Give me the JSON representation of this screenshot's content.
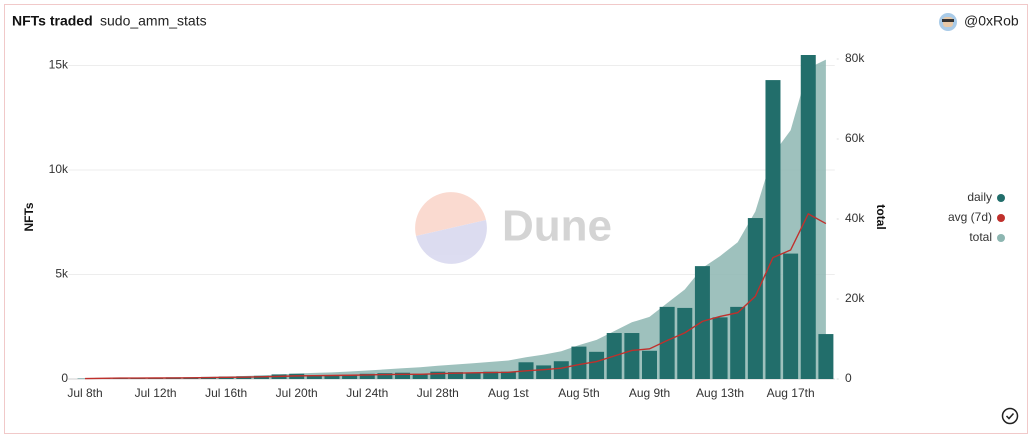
{
  "chart_data": {
    "type": "bar",
    "title": "NFTs traded",
    "subtitle": "sudo_amm_stats",
    "author": "@0xRob",
    "watermark": "Dune",
    "ylabel": "NFTs",
    "y2label": "total",
    "categories": [
      "Jul 8th",
      null,
      null,
      null,
      "Jul 12th",
      null,
      null,
      null,
      "Jul 16th",
      null,
      null,
      null,
      "Jul 20th",
      null,
      null,
      null,
      "Jul 24th",
      null,
      null,
      null,
      "Jul 28th",
      null,
      null,
      null,
      "Aug 1st",
      null,
      null,
      null,
      "Aug 5th",
      null,
      null,
      null,
      "Aug 9th",
      null,
      null,
      null,
      "Aug 13th",
      null,
      null,
      null,
      "Aug 17th",
      null,
      null
    ],
    "series": [
      {
        "name": "daily",
        "type": "bar",
        "color": "#226e6b",
        "values": [
          20,
          50,
          60,
          50,
          60,
          80,
          80,
          100,
          120,
          130,
          150,
          220,
          250,
          150,
          150,
          200,
          250,
          280,
          300,
          250,
          350,
          330,
          300,
          350,
          350,
          800,
          650,
          850,
          1550,
          1300,
          2200,
          2200,
          1350,
          3450,
          3400,
          5400,
          2950,
          3450,
          7700,
          14300,
          6000,
          15500,
          2150
        ]
      },
      {
        "name": "avg (7d)",
        "type": "line",
        "color": "#c0302c",
        "values": [
          20,
          35,
          43,
          45,
          48,
          53,
          57,
          69,
          79,
          89,
          103,
          126,
          150,
          160,
          167,
          179,
          196,
          214,
          226,
          226,
          254,
          280,
          294,
          309,
          319,
          390,
          447,
          519,
          693,
          836,
          1100,
          1364,
          1443,
          1843,
          2207,
          2757,
          2993,
          3171,
          3957,
          5807,
          6171,
          7900,
          7436
        ]
      },
      {
        "name": "total",
        "type": "area",
        "axis": "y2",
        "color": "#8db6b1",
        "values": [
          20,
          70,
          130,
          180,
          240,
          320,
          400,
          500,
          620,
          750,
          900,
          1120,
          1370,
          1520,
          1670,
          1870,
          2120,
          2400,
          2700,
          2950,
          3300,
          3630,
          3930,
          4280,
          4630,
          5430,
          6080,
          6930,
          8480,
          9780,
          11980,
          14180,
          15530,
          18980,
          22380,
          27780,
          30730,
          34180,
          41880,
          56180,
          62180,
          77680,
          79830
        ]
      }
    ],
    "ylim": [
      0,
      15500
    ],
    "yticks": [
      0,
      {
        "value": 5000,
        "label": "5k"
      },
      {
        "value": 10000,
        "label": "10k"
      },
      {
        "value": 15000,
        "label": "15k"
      }
    ],
    "y2lim": [
      0,
      81000
    ],
    "y2ticks": [
      0,
      {
        "value": 20000,
        "label": "20k"
      },
      {
        "value": 40000,
        "label": "40k"
      },
      {
        "value": 60000,
        "label": "60k"
      },
      {
        "value": 80000,
        "label": "80k"
      }
    ],
    "grid": true,
    "legend": "right"
  }
}
